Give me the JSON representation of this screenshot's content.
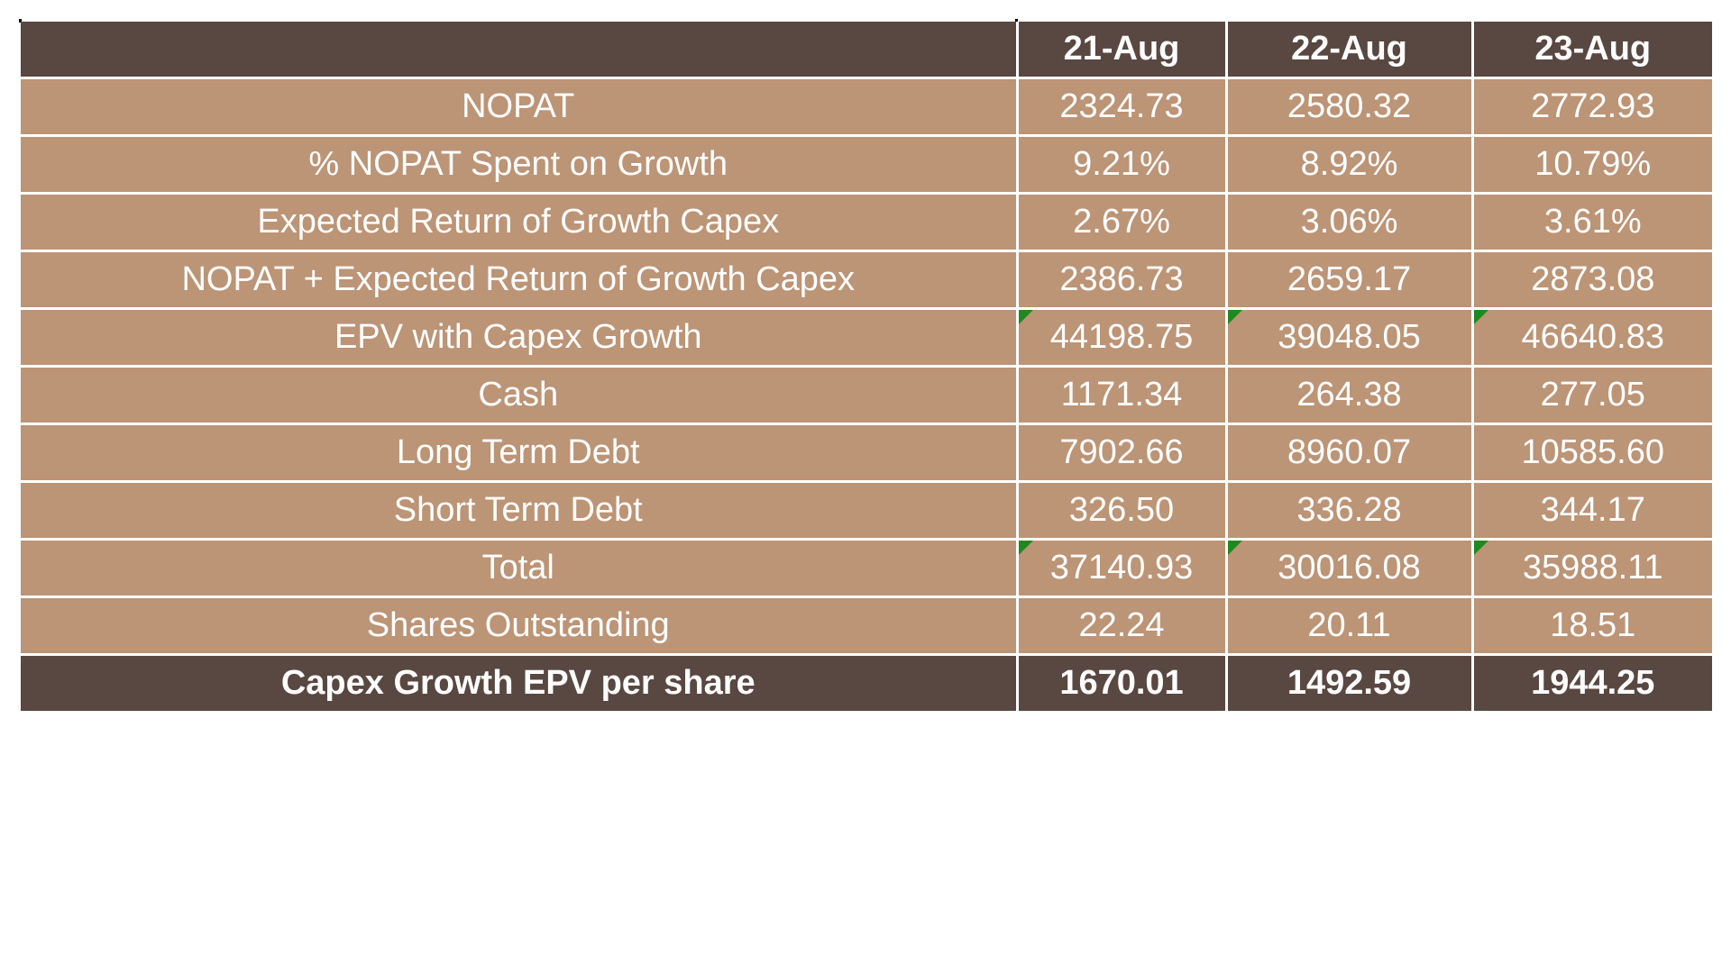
{
  "table": {
    "columns": [
      "",
      "21-Aug",
      "22-Aug",
      "23-Aug"
    ],
    "rows": [
      {
        "label": "NOPAT",
        "values": [
          "2324.73",
          "2580.32",
          "2772.93"
        ],
        "flagged": false
      },
      {
        "label": "% NOPAT Spent on Growth",
        "values": [
          "9.21%",
          "8.92%",
          "10.79%"
        ],
        "flagged": false
      },
      {
        "label": "Expected Return of Growth Capex",
        "values": [
          "2.67%",
          "3.06%",
          "3.61%"
        ],
        "flagged": false
      },
      {
        "label": "NOPAT + Expected Return of Growth Capex",
        "values": [
          "2386.73",
          "2659.17",
          "2873.08"
        ],
        "flagged": false
      },
      {
        "label": "EPV with Capex Growth",
        "values": [
          "44198.75",
          "39048.05",
          "46640.83"
        ],
        "flagged": true
      },
      {
        "label": "Cash",
        "values": [
          "1171.34",
          "264.38",
          "277.05"
        ],
        "flagged": false
      },
      {
        "label": "Long Term Debt",
        "values": [
          "7902.66",
          "8960.07",
          "10585.60"
        ],
        "flagged": false
      },
      {
        "label": "Short Term Debt",
        "values": [
          "326.50",
          "336.28",
          "344.17"
        ],
        "flagged": false
      },
      {
        "label": "Total",
        "values": [
          "37140.93",
          "30016.08",
          "35988.11"
        ],
        "flagged": true
      },
      {
        "label": "Shares Outstanding",
        "values": [
          "22.24",
          "20.11",
          "18.51"
        ],
        "flagged": false
      }
    ],
    "footer": {
      "label": "Capex Growth EPV per share",
      "values": [
        "1670.01",
        "1492.59",
        "1944.25"
      ]
    }
  },
  "colors": {
    "header_bg": "#594741",
    "row_bg": "#bc9476",
    "text": "#ffffff",
    "flag": "#1e8a1e"
  }
}
